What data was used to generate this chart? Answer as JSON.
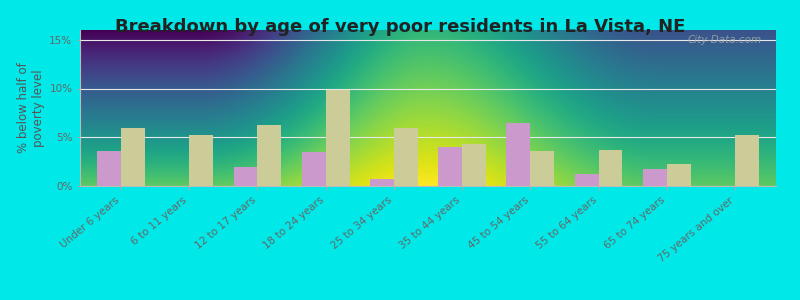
{
  "title": "Breakdown by age of very poor residents in La Vista, NE",
  "ylabel": "% below half of\npoverty level",
  "categories": [
    "Under 6 years",
    "6 to 11 years",
    "12 to 17 years",
    "18 to 24 years",
    "25 to 34 years",
    "35 to 44 years",
    "45 to 54 years",
    "55 to 64 years",
    "65 to 74 years",
    "75 years and over"
  ],
  "lavista_values": [
    3.6,
    0.0,
    2.0,
    3.5,
    0.7,
    4.0,
    6.5,
    1.2,
    1.7,
    0.0
  ],
  "nebraska_values": [
    6.0,
    5.2,
    6.3,
    9.8,
    6.0,
    4.3,
    3.6,
    3.7,
    2.3,
    5.2
  ],
  "lavista_color": "#cc99cc",
  "nebraska_color": "#cccc99",
  "background_color": "#00e8e8",
  "plot_bg_top_color": "#d8ede0",
  "plot_bg_bottom_color": "#f0f8f0",
  "grid_color": "#e8e8e8",
  "ylim": [
    0,
    16
  ],
  "yticks": [
    0,
    5,
    10,
    15
  ],
  "ytick_labels": [
    "0%",
    "5%",
    "10%",
    "15%"
  ],
  "bar_width": 0.35,
  "title_fontsize": 13,
  "axis_label_fontsize": 8.5,
  "tick_fontsize": 7.5,
  "legend_fontsize": 9,
  "watermark": "City-Data.com"
}
